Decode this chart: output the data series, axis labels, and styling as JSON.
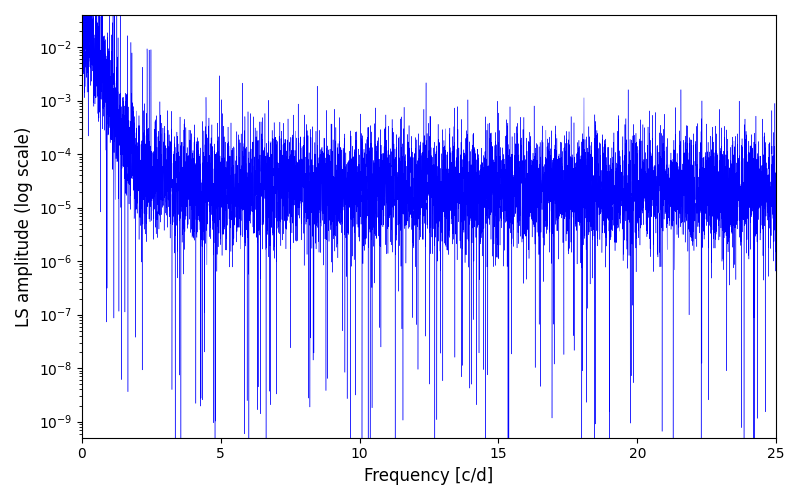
{
  "line_color": "#0000ff",
  "xlabel": "Frequency [c/d]",
  "ylabel": "LS amplitude (log scale)",
  "xlim": [
    0,
    25
  ],
  "ylim_bottom_exp": -9.3,
  "ylim_top_exp": -1.4,
  "n_points": 8000,
  "seed": 7,
  "background_color": "#ffffff",
  "linewidth": 0.3,
  "figsize": [
    8.0,
    5.0
  ],
  "dpi": 100,
  "xticks": [
    0,
    5,
    10,
    15,
    20,
    25
  ]
}
